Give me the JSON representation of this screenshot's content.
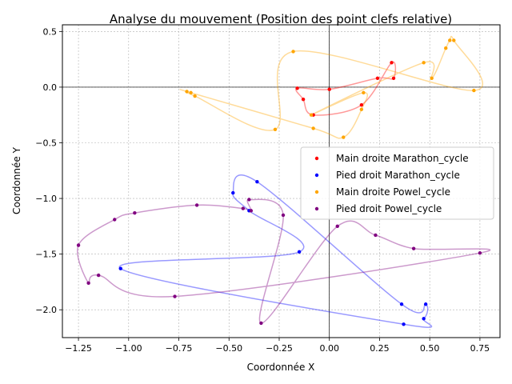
{
  "chart_data": {
    "type": "scatter",
    "title": "Analyse du mouvement (Position des point clefs relative)",
    "xlabel": "Coordonnée X",
    "ylabel": "Coordonnée Y",
    "xlim": [
      -1.33,
      0.85
    ],
    "ylim": [
      -2.25,
      0.56
    ],
    "xticks": [
      -1.25,
      -1.0,
      -0.75,
      -0.5,
      -0.25,
      0.0,
      0.25,
      0.5,
      0.75
    ],
    "xtick_labels": [
      "−1.25",
      "−1.00",
      "−0.75",
      "−0.50",
      "−0.25",
      "0.00",
      "0.25",
      "0.50",
      "0.75"
    ],
    "yticks": [
      0.5,
      0.0,
      -0.5,
      -1.0,
      -1.5,
      -2.0
    ],
    "ytick_labels": [
      "0.5",
      "0.0",
      "−0.5",
      "−1.0",
      "−1.5",
      "−2.0"
    ],
    "grid": true,
    "reference_lines": {
      "x": 0,
      "y": 0
    },
    "legend_position": "right",
    "series": [
      {
        "name": "Main droite Marathon_cycle",
        "color": "#ff0000",
        "curve_alpha": 0.4,
        "points": [
          [
            0.0,
            -0.02
          ],
          [
            0.24,
            0.08
          ],
          [
            0.32,
            0.08
          ],
          [
            0.31,
            0.22
          ],
          [
            0.16,
            -0.16
          ],
          [
            -0.08,
            -0.25
          ],
          [
            -0.13,
            -0.11
          ],
          [
            -0.16,
            -0.01
          ]
        ]
      },
      {
        "name": "Pied droit Marathon_cycle",
        "color": "#0000ff",
        "curve_alpha": 0.4,
        "points": [
          [
            -0.36,
            -0.85
          ],
          [
            -0.48,
            -0.95
          ],
          [
            -0.4,
            -1.11
          ],
          [
            -0.15,
            -1.48
          ],
          [
            -1.04,
            -1.63
          ],
          [
            0.37,
            -2.13
          ],
          [
            0.47,
            -2.08
          ],
          [
            0.48,
            -1.95
          ],
          [
            0.36,
            -1.95
          ]
        ]
      },
      {
        "name": "Main droite Powel_cycle",
        "color": "#ffa500",
        "curve_alpha": 0.4,
        "points": [
          [
            -0.18,
            0.32
          ],
          [
            -0.27,
            -0.38
          ],
          [
            -0.67,
            -0.08
          ],
          [
            -0.71,
            -0.04
          ],
          [
            -0.69,
            -0.05
          ],
          [
            -0.08,
            -0.37
          ],
          [
            0.07,
            -0.45
          ],
          [
            0.16,
            -0.2
          ],
          [
            0.17,
            -0.05
          ],
          [
            -0.09,
            -0.25
          ],
          [
            0.47,
            0.22
          ],
          [
            0.51,
            0.08
          ],
          [
            0.58,
            0.35
          ],
          [
            0.6,
            0.42
          ],
          [
            0.62,
            0.42
          ],
          [
            0.72,
            -0.03
          ]
        ]
      },
      {
        "name": "Pied droit Powel_cycle",
        "color": "#800080",
        "curve_alpha": 0.4,
        "points": [
          [
            -0.66,
            -1.06
          ],
          [
            -0.43,
            -1.09
          ],
          [
            -0.39,
            -1.11
          ],
          [
            -0.4,
            -1.01
          ],
          [
            -0.23,
            -1.15
          ],
          [
            -0.34,
            -2.12
          ],
          [
            0.04,
            -1.25
          ],
          [
            0.23,
            -1.33
          ],
          [
            0.42,
            -1.45
          ],
          [
            0.75,
            -1.49
          ],
          [
            -0.77,
            -1.88
          ],
          [
            -1.15,
            -1.69
          ],
          [
            -1.2,
            -1.76
          ],
          [
            -1.25,
            -1.42
          ],
          [
            -1.07,
            -1.19
          ],
          [
            -0.97,
            -1.13
          ]
        ]
      }
    ]
  }
}
